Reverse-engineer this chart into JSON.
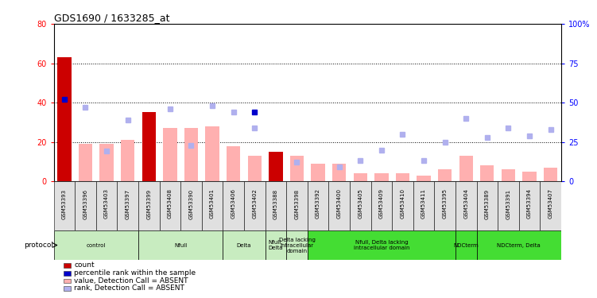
{
  "title": "GDS1690 / 1633285_at",
  "samples": [
    "GSM53393",
    "GSM53396",
    "GSM53403",
    "GSM53397",
    "GSM53399",
    "GSM53408",
    "GSM53390",
    "GSM53401",
    "GSM53406",
    "GSM53402",
    "GSM53388",
    "GSM53398",
    "GSM53392",
    "GSM53400",
    "GSM53405",
    "GSM53409",
    "GSM53410",
    "GSM53411",
    "GSM53395",
    "GSM53404",
    "GSM53389",
    "GSM53391",
    "GSM53394",
    "GSM53407"
  ],
  "count_values": [
    63,
    0,
    0,
    0,
    35,
    0,
    0,
    0,
    0,
    0,
    15,
    0,
    0,
    0,
    0,
    0,
    0,
    0,
    0,
    0,
    0,
    0,
    0,
    0
  ],
  "rank_values": [
    52,
    0,
    0,
    0,
    0,
    0,
    0,
    0,
    0,
    44,
    0,
    0,
    0,
    0,
    0,
    0,
    0,
    0,
    0,
    0,
    0,
    0,
    0,
    0
  ],
  "absent_value": [
    0,
    19,
    19,
    21,
    3,
    27,
    27,
    28,
    18,
    13,
    0,
    13,
    9,
    9,
    4,
    4,
    4,
    3,
    6,
    13,
    8,
    6,
    5,
    7
  ],
  "absent_rank": [
    0,
    47,
    19,
    39,
    0,
    46,
    23,
    48,
    44,
    34,
    0,
    12,
    0,
    9,
    13,
    20,
    30,
    13,
    25,
    40,
    28,
    34,
    29,
    33
  ],
  "groups": [
    {
      "label": "control",
      "start": 0,
      "end": 4,
      "color": "#c8ecc0"
    },
    {
      "label": "Nfull",
      "start": 4,
      "end": 8,
      "color": "#c8ecc0"
    },
    {
      "label": "Delta",
      "start": 8,
      "end": 10,
      "color": "#c8ecc0"
    },
    {
      "label": "Nfull,\nDelta",
      "start": 10,
      "end": 11,
      "color": "#c8ecc0"
    },
    {
      "label": "Delta lacking\nintracellular\ndomain",
      "start": 11,
      "end": 12,
      "color": "#c8ecc0"
    },
    {
      "label": "Nfull, Delta lacking\nintracellular domain",
      "start": 12,
      "end": 19,
      "color": "#44dd33"
    },
    {
      "label": "NDCterm",
      "start": 19,
      "end": 20,
      "color": "#44dd33"
    },
    {
      "label": "NDCterm, Delta",
      "start": 20,
      "end": 24,
      "color": "#44dd33"
    }
  ],
  "left_ylim": [
    0,
    80
  ],
  "right_ylim": [
    0,
    100
  ],
  "left_yticks": [
    0,
    20,
    40,
    60,
    80
  ],
  "right_yticks": [
    0,
    25,
    50,
    75,
    100
  ],
  "right_yticklabels": [
    "0",
    "25",
    "50",
    "75",
    "100%"
  ],
  "bar_color_count": "#cc0000",
  "bar_color_rank": "#0000cc",
  "bar_color_absent_value": "#ffb0b0",
  "bar_color_absent_rank": "#b0b0ee",
  "legend_items": [
    {
      "label": "count",
      "color": "#cc0000"
    },
    {
      "label": "percentile rank within the sample",
      "color": "#0000cc"
    },
    {
      "label": "value, Detection Call = ABSENT",
      "color": "#ffb0b0"
    },
    {
      "label": "rank, Detection Call = ABSENT",
      "color": "#b0b0ee"
    }
  ]
}
